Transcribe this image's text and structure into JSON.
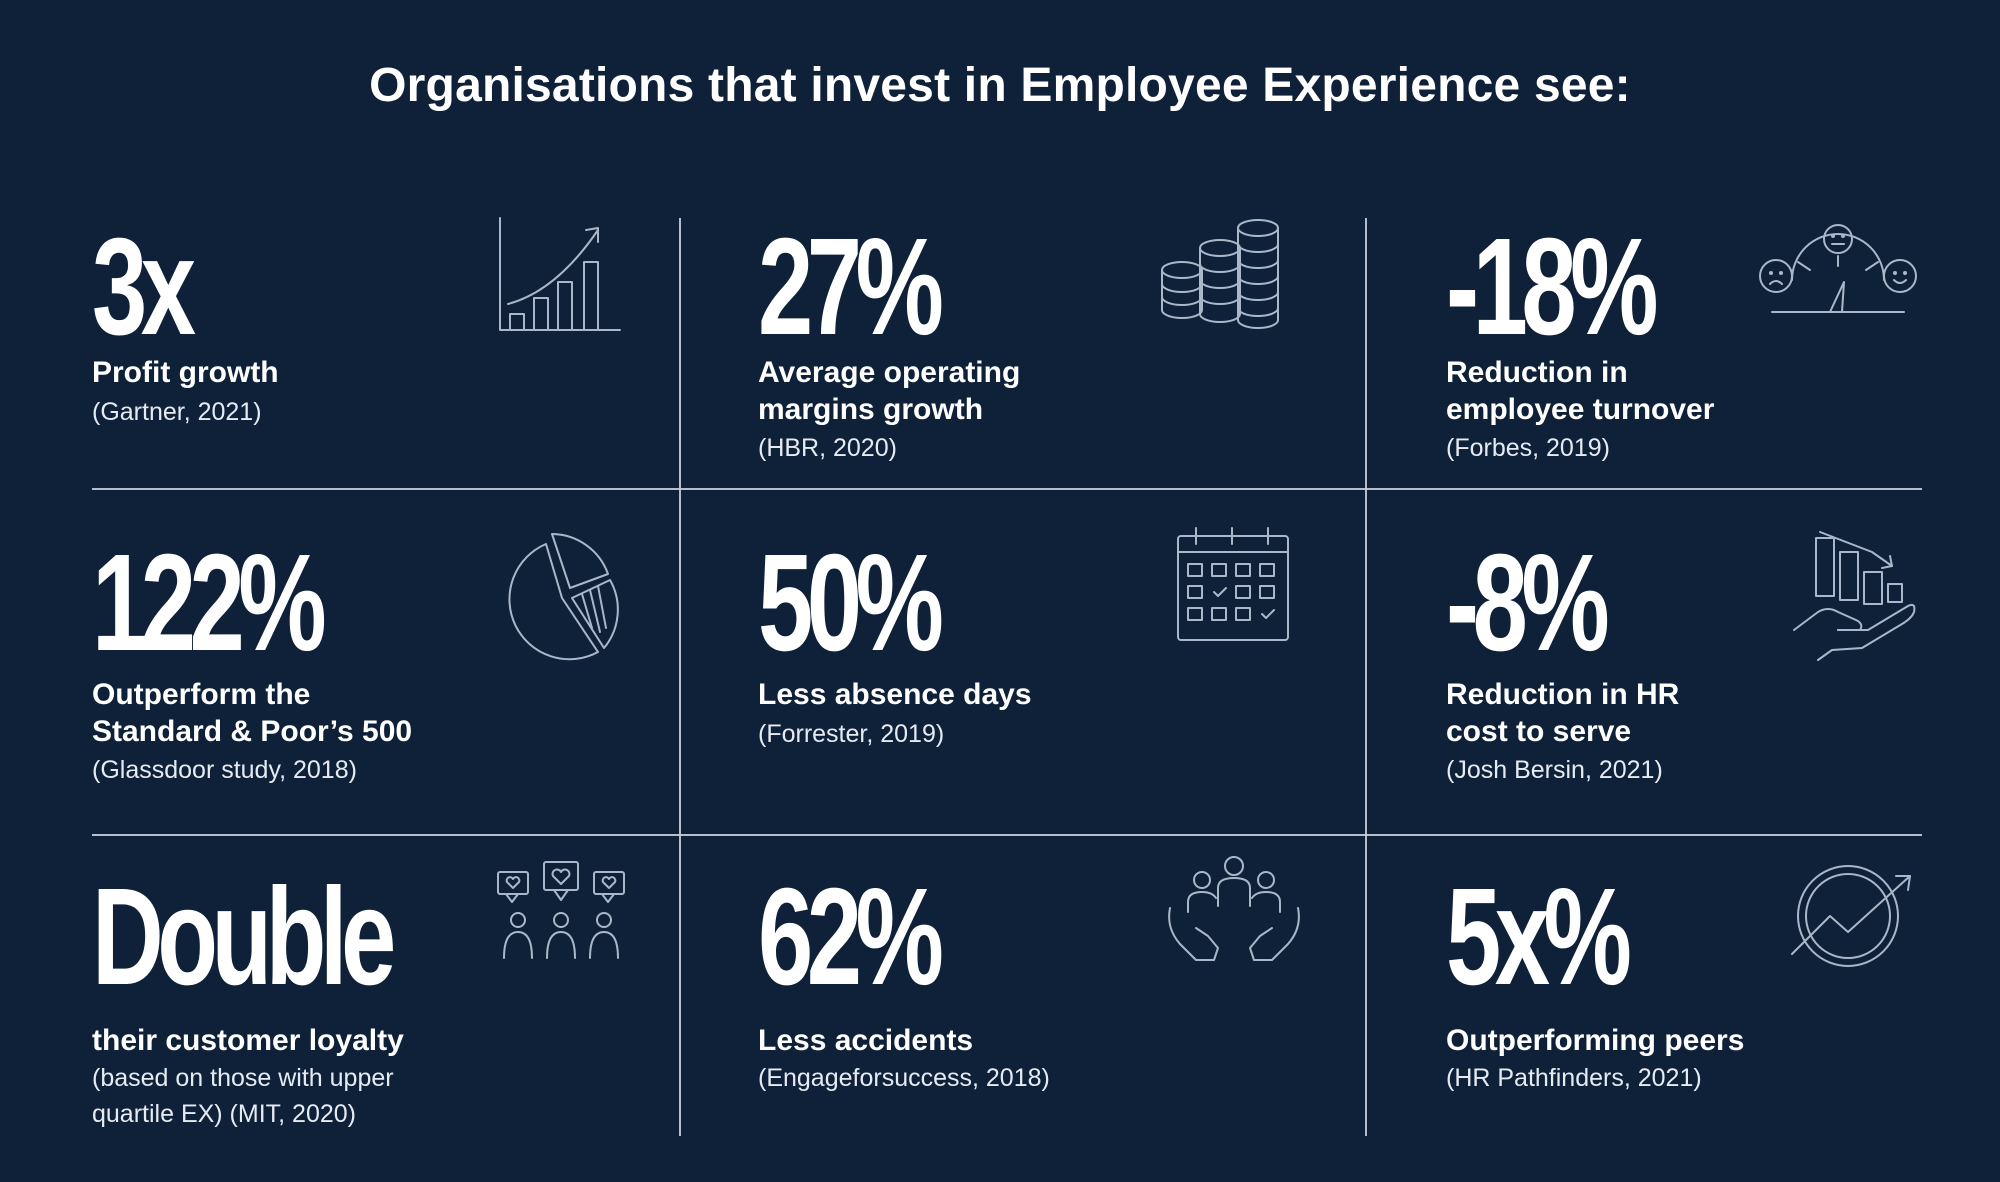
{
  "title": "Organisations that invest in Employee Experience see:",
  "stats": [
    {
      "value": "3x",
      "label": "Profit growth",
      "source": "(Gartner, 2021)",
      "icon": "bar-chart-growth-icon"
    },
    {
      "value": "27%",
      "label": "Average operating\nmargins growth",
      "source": "(HBR, 2020)",
      "icon": "coin-stacks-icon"
    },
    {
      "value": "-18%",
      "label": "Reduction in\nemployee turnover",
      "source": "(Forbes, 2019)",
      "icon": "satisfaction-gauge-icon"
    },
    {
      "value": "122%",
      "label": "Outperform the\nStandard & Poor’s 500",
      "source": "(Glassdoor study, 2018)",
      "icon": "pie-chart-icon"
    },
    {
      "value": "50%",
      "label": "Less absence days",
      "source": "(Forrester, 2019)",
      "icon": "calendar-icon"
    },
    {
      "value": "-8%",
      "label": "Reduction in HR\ncost to serve",
      "source": "(Josh Bersin, 2021)",
      "icon": "hand-declining-chart-icon"
    },
    {
      "value": "Double",
      "label": "their customer loyalty",
      "source": "(based on those with upper\nquartile EX) (MIT, 2020)",
      "icon": "customers-hearts-icon"
    },
    {
      "value": "62%",
      "label": "Less accidents",
      "source": "(Engageforsuccess, 2018)",
      "icon": "hands-people-icon"
    },
    {
      "value": "5x%",
      "label": "Outperforming peers",
      "source": "(HR Pathfinders, 2021)",
      "icon": "trend-circle-icon"
    }
  ],
  "colors": {
    "background": "#0f2139",
    "text": "#ffffff",
    "divider": "#c8d0dc",
    "icon_stroke": "#aab7c8"
  }
}
